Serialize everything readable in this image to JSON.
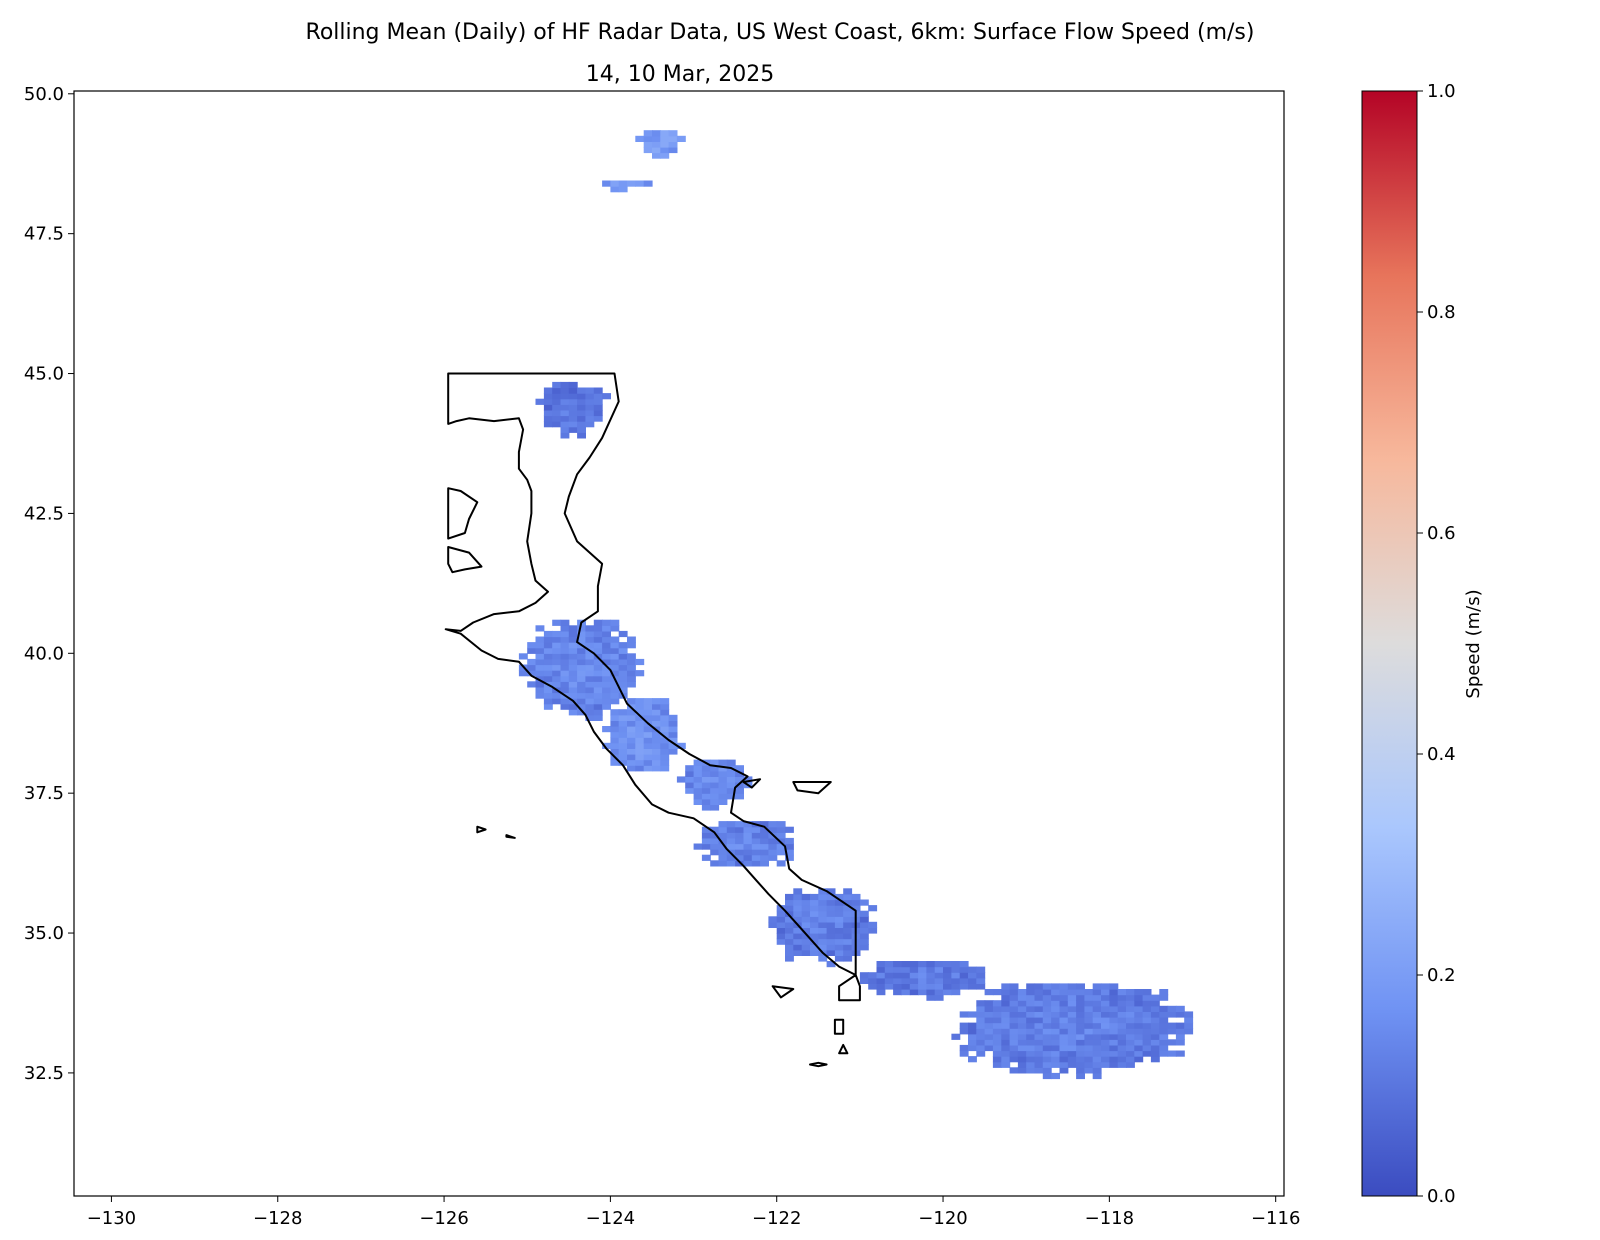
{
  "chart_data": {
    "type": "heatmap",
    "title": "Rolling Mean (Daily) of HF Radar Data, US West Coast, 6km: Surface Flow Speed (m/s)",
    "subtitle": "14, 10 Mar, 2025",
    "xlabel": "",
    "ylabel": "",
    "xlim": [
      -130.45,
      -115.9
    ],
    "ylim": [
      30.3,
      50.05
    ],
    "xticks": [
      -130,
      -128,
      -126,
      -124,
      -122,
      -120,
      -118,
      -116
    ],
    "xtick_labels": [
      "−130",
      "−128",
      "−126",
      "−124",
      "−122",
      "−120",
      "−118",
      "−116"
    ],
    "yticks": [
      32.5,
      35.0,
      37.5,
      40.0,
      42.5,
      45.0,
      47.5,
      50.0
    ],
    "ytick_labels": [
      "32.5",
      "35.0",
      "37.5",
      "40.0",
      "42.5",
      "45.0",
      "47.5",
      "50.0"
    ],
    "grid": false,
    "colorbar": {
      "label": "Speed (m/s)",
      "range": [
        0.0,
        1.0
      ],
      "ticks": [
        0.0,
        0.2,
        0.4,
        0.6,
        0.8,
        1.0
      ],
      "tick_labels": [
        "0.0",
        "0.2",
        "0.4",
        "0.6",
        "0.8",
        "1.0"
      ],
      "colormap": [
        "#3b4cc0",
        "#6f92f3",
        "#aac7fd",
        "#dddcdc",
        "#f7b89c",
        "#e7745b",
        "#b40426"
      ]
    },
    "speed_regions": [
      {
        "name": "sj-islands",
        "lon": [
          -123.7,
          -123.2
        ],
        "lat": [
          48.85,
          49.35
        ],
        "speed": 0.17
      },
      {
        "name": "juan-de-fuca",
        "lon": [
          -124.2,
          -123.55
        ],
        "lat": [
          48.25,
          48.45
        ],
        "speed": 0.15
      },
      {
        "name": "oregon",
        "lon": [
          -124.9,
          -124.1
        ],
        "lat": [
          43.85,
          44.8
        ],
        "speed": 0.07
      },
      {
        "name": "n-california",
        "lon": [
          -125.1,
          -123.7
        ],
        "lat": [
          38.8,
          40.6
        ],
        "speed": 0.11
      },
      {
        "name": "pt-arena",
        "lon": [
          -124.1,
          -123.2
        ],
        "lat": [
          37.8,
          39.2
        ],
        "speed": 0.14
      },
      {
        "name": "sf-bay",
        "lon": [
          -123.2,
          -122.4
        ],
        "lat": [
          37.2,
          38.1
        ],
        "speed": 0.12
      },
      {
        "name": "monterey",
        "lon": [
          -123.0,
          -121.8
        ],
        "lat": [
          36.1,
          37.0
        ],
        "speed": 0.1
      },
      {
        "name": "central-coast",
        "lon": [
          -122.1,
          -120.9
        ],
        "lat": [
          34.4,
          35.8
        ],
        "speed": 0.09
      },
      {
        "name": "sb-channel",
        "lon": [
          -121.0,
          -119.5
        ],
        "lat": [
          33.8,
          34.5
        ],
        "speed": 0.08
      },
      {
        "name": "socal-bight",
        "lon": [
          -119.9,
          -117.1
        ],
        "lat": [
          32.4,
          34.1
        ],
        "speed": 0.09
      }
    ],
    "coastline": {
      "mainland": [
        [
          -123.95,
          45.0
        ],
        [
          -125.95,
          45.0
        ],
        [
          -125.95,
          44.1
        ],
        [
          -125.85,
          44.15
        ],
        [
          -125.7,
          44.2
        ],
        [
          -125.4,
          44.15
        ],
        [
          -125.1,
          44.2
        ],
        [
          -125.05,
          44.0
        ],
        [
          -125.1,
          43.6
        ],
        [
          -125.1,
          43.3
        ],
        [
          -125.0,
          43.1
        ],
        [
          -124.95,
          42.9
        ],
        [
          -124.95,
          42.5
        ],
        [
          -125.0,
          42.0
        ],
        [
          -124.95,
          41.6
        ],
        [
          -124.9,
          41.3
        ],
        [
          -124.75,
          41.1
        ],
        [
          -124.9,
          40.9
        ],
        [
          -125.1,
          40.75
        ],
        [
          -125.4,
          40.7
        ],
        [
          -125.65,
          40.55
        ],
        [
          -125.8,
          40.4
        ],
        [
          -125.98,
          40.43
        ],
        [
          -125.8,
          40.35
        ],
        [
          -125.55,
          40.05
        ],
        [
          -125.35,
          39.9
        ],
        [
          -125.1,
          39.85
        ],
        [
          -124.95,
          39.6
        ],
        [
          -124.7,
          39.4
        ],
        [
          -124.45,
          39.15
        ],
        [
          -124.3,
          38.9
        ],
        [
          -124.2,
          38.6
        ],
        [
          -124.05,
          38.3
        ],
        [
          -123.85,
          38.0
        ],
        [
          -123.7,
          37.65
        ],
        [
          -123.5,
          37.3
        ],
        [
          -123.3,
          37.15
        ],
        [
          -123.0,
          37.05
        ],
        [
          -122.75,
          36.8
        ],
        [
          -122.6,
          36.5
        ],
        [
          -122.4,
          36.2
        ],
        [
          -122.25,
          35.95
        ],
        [
          -122.1,
          35.7
        ],
        [
          -121.9,
          35.4
        ],
        [
          -121.75,
          35.15
        ],
        [
          -121.6,
          34.9
        ],
        [
          -121.45,
          34.65
        ],
        [
          -121.25,
          34.4
        ],
        [
          -121.05,
          34.25
        ],
        [
          -121.0,
          34.05
        ],
        [
          -121.0,
          33.8
        ],
        [
          -121.25,
          33.8
        ],
        [
          -121.25,
          34.05
        ],
        [
          -121.05,
          34.25
        ],
        [
          -121.05,
          35.0
        ],
        [
          -121.05,
          35.4
        ],
        [
          -121.4,
          35.75
        ],
        [
          -121.7,
          35.95
        ],
        [
          -121.85,
          36.15
        ],
        [
          -121.9,
          36.55
        ],
        [
          -122.15,
          36.9
        ],
        [
          -122.4,
          37.0
        ],
        [
          -122.55,
          37.15
        ],
        [
          -122.5,
          37.6
        ],
        [
          -122.35,
          37.8
        ],
        [
          -122.55,
          37.95
        ],
        [
          -122.8,
          38.0
        ],
        [
          -123.05,
          38.2
        ],
        [
          -123.3,
          38.45
        ],
        [
          -123.55,
          38.75
        ],
        [
          -123.8,
          39.1
        ],
        [
          -124.0,
          39.7
        ],
        [
          -124.2,
          40.0
        ],
        [
          -124.4,
          40.2
        ],
        [
          -124.35,
          40.55
        ],
        [
          -124.15,
          40.75
        ],
        [
          -124.15,
          41.2
        ],
        [
          -124.1,
          41.6
        ],
        [
          -124.4,
          42.0
        ],
        [
          -124.55,
          42.5
        ],
        [
          -124.5,
          42.8
        ],
        [
          -124.4,
          43.2
        ],
        [
          -124.25,
          43.5
        ],
        [
          -124.1,
          43.85
        ],
        [
          -123.9,
          44.5
        ],
        [
          -123.95,
          45.0
        ]
      ],
      "islands": [
        [
          [
            -125.95,
            42.95
          ],
          [
            -125.8,
            42.9
          ],
          [
            -125.6,
            42.7
          ],
          [
            -125.7,
            42.4
          ],
          [
            -125.75,
            42.15
          ],
          [
            -125.95,
            42.05
          ],
          [
            -125.95,
            42.95
          ]
        ],
        [
          [
            -125.95,
            41.9
          ],
          [
            -125.7,
            41.8
          ],
          [
            -125.55,
            41.55
          ],
          [
            -125.75,
            41.5
          ],
          [
            -125.9,
            41.45
          ],
          [
            -125.95,
            41.6
          ],
          [
            -125.95,
            41.9
          ]
        ],
        [
          [
            -121.8,
            37.7
          ],
          [
            -121.35,
            37.7
          ],
          [
            -121.5,
            37.5
          ],
          [
            -121.75,
            37.55
          ],
          [
            -121.8,
            37.7
          ]
        ],
        [
          [
            -122.05,
            34.05
          ],
          [
            -121.8,
            34.0
          ],
          [
            -121.95,
            33.85
          ],
          [
            -122.05,
            34.05
          ]
        ],
        [
          [
            -121.3,
            33.45
          ],
          [
            -121.3,
            33.2
          ],
          [
            -121.2,
            33.2
          ],
          [
            -121.2,
            33.45
          ],
          [
            -121.3,
            33.45
          ]
        ],
        [
          [
            -121.25,
            32.85
          ],
          [
            -121.2,
            33.0
          ],
          [
            -121.15,
            32.85
          ],
          [
            -121.25,
            32.85
          ]
        ],
        [
          [
            -121.6,
            32.65
          ],
          [
            -121.5,
            32.62
          ],
          [
            -121.4,
            32.65
          ],
          [
            -121.5,
            32.68
          ],
          [
            -121.6,
            32.65
          ]
        ],
        [
          [
            -122.4,
            37.7
          ],
          [
            -122.2,
            37.75
          ],
          [
            -122.3,
            37.6
          ],
          [
            -122.4,
            37.7
          ]
        ],
        [
          [
            -125.6,
            36.9
          ],
          [
            -125.5,
            36.85
          ],
          [
            -125.6,
            36.8
          ],
          [
            -125.6,
            36.9
          ]
        ],
        [
          [
            -125.25,
            36.75
          ],
          [
            -125.15,
            36.7
          ],
          [
            -125.25,
            36.72
          ],
          [
            -125.25,
            36.75
          ]
        ]
      ]
    }
  }
}
